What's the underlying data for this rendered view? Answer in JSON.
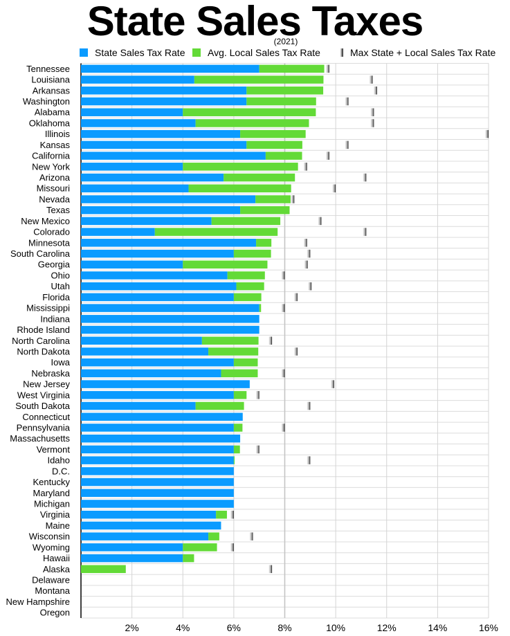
{
  "chart_data": {
    "type": "bar",
    "orientation": "horizontal",
    "stacked": true,
    "title": "State Sales Taxes",
    "subtitle": "(2021)",
    "xlim": [
      0,
      16
    ],
    "x_ticks": [
      "2%",
      "4%",
      "6%",
      "8%",
      "10%",
      "12%",
      "14%",
      "16%"
    ],
    "x_tick_values": [
      2,
      4,
      6,
      8,
      10,
      12,
      14,
      16
    ],
    "grid": true,
    "legend_placement": "top",
    "colors": {
      "state": "#0a9bff",
      "local": "#63da37",
      "max": "#222222"
    },
    "series": [
      {
        "name": "State Sales Tax Rate",
        "key": "state"
      },
      {
        "name": "Avg. Local Sales Tax Rate",
        "key": "local"
      },
      {
        "name": "Max State + Local Sales Tax Rate",
        "key": "max"
      }
    ],
    "categories": [
      "Tennessee",
      "Louisiana",
      "Arkansas",
      "Washington",
      "Alabama",
      "Oklahoma",
      "Illinois",
      "Kansas",
      "California",
      "New York",
      "Arizona",
      "Missouri",
      "Nevada",
      "Texas",
      "New Mexico",
      "Colorado",
      "Minnesota",
      "South Carolina",
      "Georgia",
      "Ohio",
      "Utah",
      "Florida",
      "Mississippi",
      "Indiana",
      "Rhode Island",
      "North Carolina",
      "North Dakota",
      "Iowa",
      "Nebraska",
      "New Jersey",
      "West Virginia",
      "South Dakota",
      "Connecticut",
      "Pennsylvania",
      "Massachusetts",
      "Vermont",
      "Idaho",
      "D.C.",
      "Kentucky",
      "Maryland",
      "Michigan",
      "Virginia",
      "Maine",
      "Wisconsin",
      "Wyoming",
      "Hawaii",
      "Alaska",
      "Delaware",
      "Montana",
      "New Hampshire",
      "Oregon"
    ],
    "state": [
      7.0,
      4.45,
      6.5,
      6.5,
      4.0,
      4.5,
      6.25,
      6.5,
      7.25,
      4.0,
      5.6,
      4.225,
      6.85,
      6.25,
      5.125,
      2.9,
      6.875,
      6.0,
      4.0,
      5.75,
      6.1,
      6.0,
      7.0,
      7.0,
      7.0,
      4.75,
      5.0,
      6.0,
      5.5,
      6.625,
      6.0,
      4.5,
      6.35,
      6.0,
      6.25,
      6.0,
      6.0,
      6.0,
      6.0,
      6.0,
      6.0,
      5.3,
      5.5,
      5.0,
      4.0,
      4.0,
      0,
      0,
      0,
      0,
      0
    ],
    "local": [
      2.55,
      5.07,
      3.01,
      2.73,
      5.22,
      4.45,
      2.57,
      2.19,
      1.43,
      4.52,
      2.8,
      4.025,
      1.38,
      1.94,
      2.7,
      4.82,
      0.6,
      1.46,
      3.32,
      1.47,
      1.09,
      1.08,
      0.07,
      0,
      0,
      2.22,
      1.96,
      0.94,
      1.44,
      0,
      0.5,
      1.9,
      0,
      0.34,
      0,
      0.24,
      0.03,
      0,
      0,
      0,
      0,
      0.43,
      0,
      0.43,
      1.34,
      0.44,
      1.76,
      0,
      0,
      0,
      0
    ],
    "max": [
      9.75,
      11.45,
      11.625,
      10.5,
      11.5,
      11.5,
      16.0,
      10.5,
      9.75,
      8.875,
      11.2,
      10.0,
      8.375,
      null,
      9.4375,
      11.2,
      8.875,
      9.0,
      8.9,
      8.0,
      9.05,
      8.5,
      8.0,
      null,
      null,
      7.5,
      8.5,
      null,
      8.0,
      9.94,
      7.0,
      9.0,
      null,
      8.0,
      null,
      7.0,
      9.0,
      null,
      null,
      null,
      null,
      6.0,
      null,
      6.75,
      6.0,
      null,
      7.5,
      null,
      null,
      null,
      null
    ]
  }
}
